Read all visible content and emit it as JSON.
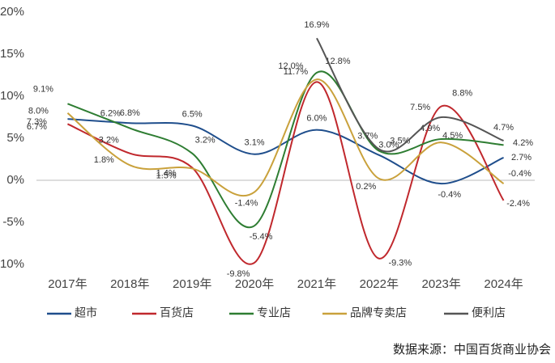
{
  "chart_data": {
    "type": "line",
    "categories": [
      "2017年",
      "2018年",
      "2019年",
      "2020年",
      "2021年",
      "2022年",
      "2023年",
      "2024年"
    ],
    "series": [
      {
        "name": "超市",
        "color": "#1f4e8c",
        "values": [
          7.3,
          6.8,
          6.5,
          3.1,
          6.0,
          3.0,
          -0.4,
          2.7
        ],
        "value_labels": [
          "7.3%",
          "6.8%",
          "6.5%",
          "3.1%",
          "6.0%",
          "3.0%",
          "-0.4%",
          "2.7%"
        ]
      },
      {
        "name": "百货店",
        "color": "#c0282d",
        "values": [
          6.7,
          3.2,
          1.5,
          -9.8,
          11.7,
          -9.3,
          8.8,
          -2.4
        ],
        "value_labels": [
          "6.7%",
          "3.2%",
          "1.5%",
          "-9.8%",
          "11.7%",
          "-9.3%",
          "8.8%",
          "-2.4%"
        ]
      },
      {
        "name": "专业店",
        "color": "#2e7d32",
        "values": [
          9.1,
          6.2,
          3.2,
          -5.4,
          12.8,
          3.5,
          4.9,
          4.2
        ],
        "value_labels": [
          "9.1%",
          "6.2%",
          "3.2%",
          "-5.4%",
          "12.8%",
          "3.5%",
          "4.9%",
          "4.2%"
        ]
      },
      {
        "name": "品牌专卖店",
        "color": "#c9a13b",
        "values": [
          8.0,
          1.8,
          1.4,
          -1.4,
          12.0,
          0.2,
          4.5,
          -0.4
        ],
        "value_labels": [
          "8.0%",
          "1.8%",
          "1.4%",
          "-1.4%",
          "12.0%",
          "0.2%",
          "4.5%",
          "-0.4%"
        ]
      },
      {
        "name": "便利店",
        "color": "#555555",
        "values": [
          null,
          null,
          null,
          null,
          16.9,
          3.7,
          7.5,
          4.7
        ],
        "value_labels": [
          null,
          null,
          null,
          null,
          "16.9%",
          "3.7%",
          "7.5%",
          "4.7%"
        ]
      }
    ],
    "ylim": [
      -10,
      20
    ],
    "yticks": [
      {
        "value": -10,
        "label": "-10%"
      },
      {
        "value": -5,
        "label": "-5%"
      },
      {
        "value": 0,
        "label": "0%"
      },
      {
        "value": 5,
        "label": "5%"
      },
      {
        "value": 10,
        "label": "10%"
      },
      {
        "value": 15,
        "label": "15%"
      },
      {
        "value": 20,
        "label": "20%"
      }
    ],
    "source": "数据来源：中国百货商业协会"
  }
}
